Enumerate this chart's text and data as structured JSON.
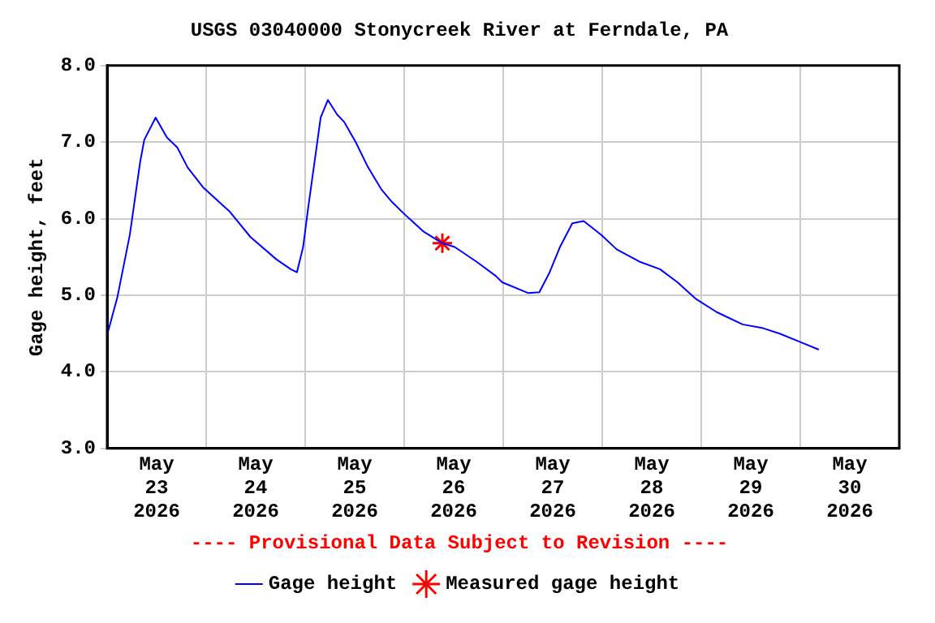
{
  "chart_data": {
    "type": "line",
    "title": "USGS 03040000 Stonycreek River at Ferndale, PA",
    "ylabel": "Gage height, feet",
    "annotations": [
      "---- Provisional Data Subject to Revision ----"
    ],
    "xlim": [
      "2026-05-23T00:00",
      "2026-05-31T00:00"
    ],
    "xticks": [
      {
        "value": "2026-05-23T12:00",
        "label": "May 23 2026"
      },
      {
        "value": "2026-05-24T00:00",
        "label": null
      },
      {
        "value": "2026-05-24T12:00",
        "label": "May 24 2026"
      },
      {
        "value": "2026-05-25T00:00",
        "label": null
      },
      {
        "value": "2026-05-25T12:00",
        "label": "May 25 2026"
      },
      {
        "value": "2026-05-26T00:00",
        "label": null
      },
      {
        "value": "2026-05-26T12:00",
        "label": "May 26 2026"
      },
      {
        "value": "2026-05-27T00:00",
        "label": null
      },
      {
        "value": "2026-05-27T12:00",
        "label": "May 27 2026"
      },
      {
        "value": "2026-05-28T00:00",
        "label": null
      },
      {
        "value": "2026-05-28T12:00",
        "label": "May 28 2026"
      },
      {
        "value": "2026-05-29T00:00",
        "label": null
      },
      {
        "value": "2026-05-29T12:00",
        "label": "May 29 2026"
      },
      {
        "value": "2026-05-30T00:00",
        "label": null
      },
      {
        "value": "2026-05-30T12:00",
        "label": "May 30 2026"
      }
    ],
    "ylim": [
      3,
      8
    ],
    "yticks": [
      {
        "value": 3,
        "label": "3.0"
      },
      {
        "value": 4,
        "label": "4.0"
      },
      {
        "value": 5,
        "label": "5.0"
      },
      {
        "value": 6,
        "label": "6.0"
      },
      {
        "value": 7,
        "label": "7.0"
      },
      {
        "value": 8,
        "label": "8.0"
      }
    ],
    "grid": true,
    "legend": "bottom",
    "series": [
      {
        "name": "Gage height",
        "color": "#0000ff",
        "marker": "none",
        "line_style": "solid",
        "x": [
          "2026-05-23T00:00",
          "2026-05-23T02:30",
          "2026-05-23T05:30",
          "2026-05-23T08:00",
          "2026-05-23T09:00",
          "2026-05-23T11:45",
          "2026-05-23T14:30",
          "2026-05-23T17:00",
          "2026-05-23T19:30",
          "2026-05-23T23:15",
          "2026-05-24T05:45",
          "2026-05-24T10:45",
          "2026-05-24T17:00",
          "2026-05-24T20:30",
          "2026-05-24T22:00",
          "2026-05-24T23:30",
          "2026-05-25T00:45",
          "2026-05-25T02:45",
          "2026-05-25T03:45",
          "2026-05-25T05:30",
          "2026-05-25T07:45",
          "2026-05-25T09:30",
          "2026-05-25T12:15",
          "2026-05-25T15:15",
          "2026-05-25T18:30",
          "2026-05-25T21:00",
          "2026-05-26T00:15",
          "2026-05-26T04:45",
          "2026-05-26T09:15",
          "2026-05-26T12:15",
          "2026-05-26T17:30",
          "2026-05-26T22:15",
          "2026-05-26T23:45",
          "2026-05-27T06:00",
          "2026-05-27T08:45",
          "2026-05-27T11:15",
          "2026-05-27T13:45",
          "2026-05-27T16:45",
          "2026-05-27T19:30",
          "2026-05-27T23:45",
          "2026-05-28T03:30",
          "2026-05-28T09:00",
          "2026-05-28T14:00",
          "2026-05-28T18:15",
          "2026-05-28T22:45",
          "2026-05-29T03:45",
          "2026-05-29T10:00",
          "2026-05-29T15:00",
          "2026-05-29T19:00",
          "2026-05-30T00:00",
          "2026-05-30T04:30"
        ],
        "values": [
          4.48,
          4.98,
          5.79,
          6.74,
          7.03,
          7.32,
          7.06,
          6.93,
          6.67,
          6.41,
          6.09,
          5.76,
          5.47,
          5.34,
          5.3,
          5.63,
          6.15,
          6.93,
          7.32,
          7.55,
          7.36,
          7.26,
          7.0,
          6.67,
          6.38,
          6.22,
          6.05,
          5.83,
          5.68,
          5.63,
          5.44,
          5.25,
          5.17,
          5.03,
          5.04,
          5.3,
          5.63,
          5.94,
          5.97,
          5.79,
          5.6,
          5.44,
          5.34,
          5.17,
          4.95,
          4.78,
          4.62,
          4.57,
          4.5,
          4.39,
          4.29
        ]
      },
      {
        "name": "Measured gage height",
        "type": "scatter",
        "color": "#ff0000",
        "marker": "cross",
        "x": [
          "2026-05-26T09:15"
        ],
        "values": [
          5.68
        ]
      }
    ]
  }
}
